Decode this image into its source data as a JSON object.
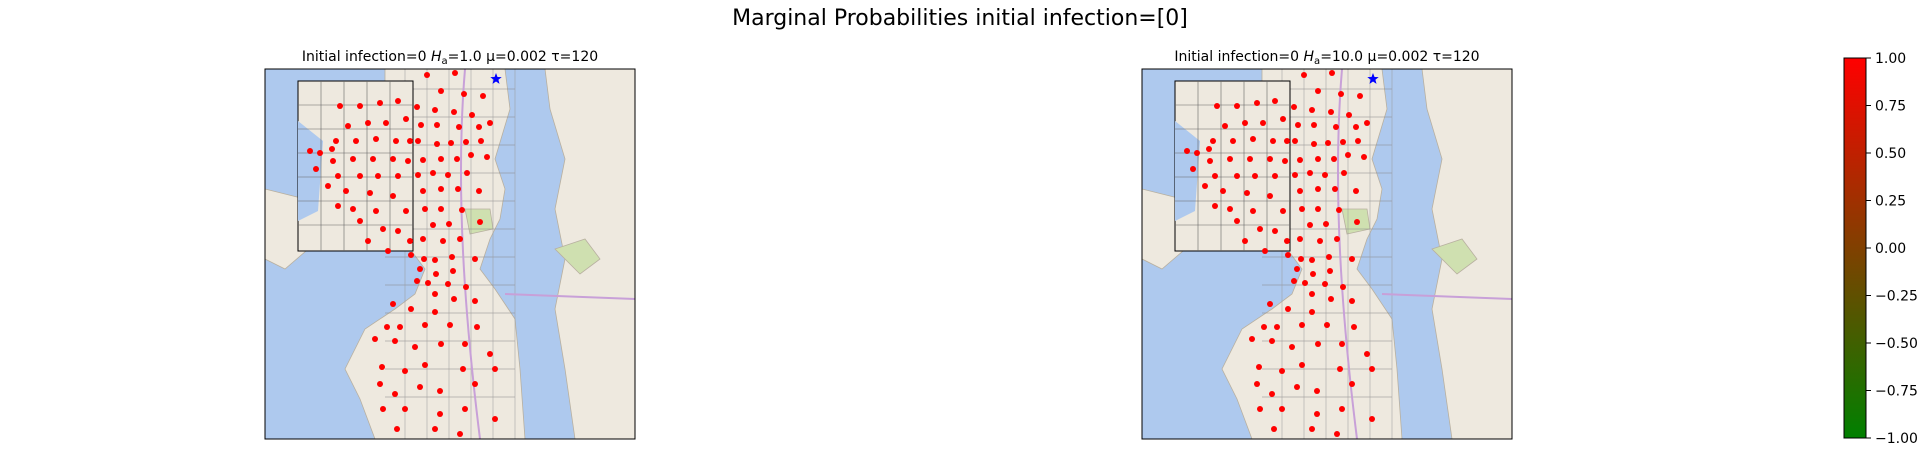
{
  "figure": {
    "title": "Marginal Probabilities initial infection=[0]"
  },
  "colors": {
    "infected": "#ff0000",
    "marker": "#0000ff",
    "water": "#aec9ee",
    "land": "#eee9df",
    "park": "#cfe0b0",
    "border": "#555555"
  },
  "chart_data": [
    {
      "type": "scatter",
      "title": "Initial infection=0 H_a=1.0 μ=0.002 τ=120",
      "title_parts": {
        "pre": "Initial infection=0 ",
        "var": "H",
        "sub": "a",
        "post": "=1.0 μ=0.002 τ=120"
      },
      "series": [
        {
          "name": "",
          "color": "#ff0000",
          "points": "node marginals (all ≈ 1.0)"
        }
      ],
      "xlabel": "",
      "ylabel": ""
    },
    {
      "type": "scatter",
      "title": "Initial infection=0 H_a=10.0 μ=0.002 τ=120",
      "title_parts": {
        "pre": "Initial infection=0 ",
        "var": "H",
        "sub": "a",
        "post": "=10.0 μ=0.002 τ=120"
      },
      "series": [
        {
          "name": "",
          "color": "#ff0000",
          "points": "node marginals (all ≈ 1.0)"
        }
      ],
      "xlabel": "",
      "ylabel": ""
    },
    {
      "type": "heatmap",
      "role": "colorbar",
      "range": [
        -1.0,
        1.0
      ],
      "colormap": [
        "#008000",
        "#804000",
        "#ff0000"
      ],
      "ticks": [
        "1.00",
        "0.75",
        "0.50",
        "0.25",
        "0.00",
        "−0.25",
        "−0.50",
        "−0.75",
        "−1.00"
      ]
    }
  ]
}
